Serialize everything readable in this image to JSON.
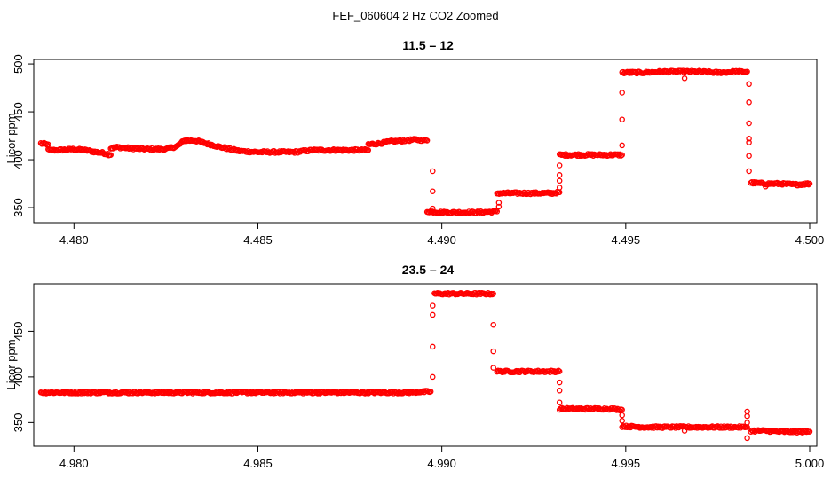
{
  "figure": {
    "title": "FEF_060604  2 Hz CO2 Zoomed"
  },
  "chart_data": [
    {
      "type": "scatter",
      "title": "11.5 – 12",
      "xlabel": "",
      "ylabel": "Licor ppm",
      "xlim": [
        4.4791,
        4.5
      ],
      "ylim": [
        338,
        501
      ],
      "xticks": [
        4.48,
        4.485,
        4.49,
        4.495,
        4.5
      ],
      "xtick_labels": [
        "4.480",
        "4.485",
        "4.490",
        "4.495",
        "4.500"
      ],
      "yticks": [
        350,
        400,
        450,
        500
      ],
      "ytick_labels": [
        "350",
        "400",
        "450",
        "500"
      ],
      "marker_color": "#ff0000",
      "marker": "open-circle",
      "grid": false,
      "series": [
        {
          "segments": [
            {
              "x": [
                4.4791,
                4.4793
              ],
              "y": [
                417,
                416
              ]
            },
            {
              "x": [
                4.4793,
                4.4796,
                4.48,
                4.4803,
                4.4806,
                4.4808,
                4.481
              ],
              "y": [
                410,
                410,
                411,
                410,
                408,
                407,
                405
              ]
            },
            {
              "x": [
                4.481,
                4.4812,
                4.4815,
                4.482,
                4.4825,
                4.4828,
                4.483
              ],
              "y": [
                412,
                413,
                412,
                411,
                411,
                414,
                420
              ]
            },
            {
              "x": [
                4.483,
                4.4833,
                4.4836,
                4.484,
                4.4845,
                4.485,
                4.4855,
                4.486,
                4.4865,
                4.487,
                4.4875,
                4.488
              ],
              "y": [
                420,
                420,
                417,
                413,
                409,
                408,
                408,
                408,
                410,
                410,
                410,
                410
              ]
            },
            {
              "x": [
                4.488,
                4.4883,
                4.4886,
                4.489,
                4.4893,
                4.4896
              ],
              "y": [
                416,
                417,
                419,
                420,
                421,
                420
              ]
            },
            {
              "x": [
                4.4896,
                4.49,
                4.4905,
                4.491,
                4.4915
              ],
              "y": [
                346,
                345,
                345,
                345,
                346
              ]
            },
            {
              "x": [
                4.4915,
                4.492,
                4.4925,
                4.493,
                4.4932
              ],
              "y": [
                365,
                365,
                365,
                365,
                366
              ]
            },
            {
              "x": [
                4.4932,
                4.4936,
                4.494,
                4.4945,
                4.4949
              ],
              "y": [
                405,
                405,
                405,
                405,
                405
              ]
            },
            {
              "x": [
                4.4949,
                4.4955,
                4.496,
                4.4965,
                4.497,
                4.4975,
                4.498,
                4.4983
              ],
              "y": [
                491,
                491,
                492,
                492,
                492,
                491,
                492,
                492
              ]
            },
            {
              "x": [
                4.4984,
                4.4988,
                4.4992,
                4.4996,
                4.5
              ],
              "y": [
                376,
                375,
                375,
                374,
                375
              ]
            }
          ],
          "transitions": [
            {
              "x": 4.48975,
              "y": [
                388,
                367,
                349
              ]
            },
            {
              "x": 4.49155,
              "y": [
                355,
                351
              ]
            },
            {
              "x": 4.4932,
              "y": [
                394,
                384,
                378,
                371
              ]
            },
            {
              "x": 4.4949,
              "y": [
                470,
                442,
                415
              ]
            },
            {
              "x": 4.4966,
              "y": [
                485
              ]
            },
            {
              "x": 4.49835,
              "y": [
                479,
                460,
                438,
                422,
                418,
                404,
                388
              ]
            },
            {
              "x": 4.4988,
              "y": [
                372
              ]
            }
          ]
        }
      ]
    },
    {
      "type": "scatter",
      "title": "23.5 – 24",
      "xlabel": "",
      "ylabel": "Licor ppm",
      "xlim": [
        4.9791,
        5.0
      ],
      "ylim": [
        328,
        498
      ],
      "xticks": [
        4.98,
        4.985,
        4.99,
        4.995,
        5.0
      ],
      "xtick_labels": [
        "4.980",
        "4.985",
        "4.990",
        "4.995",
        "5.000"
      ],
      "yticks": [
        350,
        400,
        450
      ],
      "ytick_labels": [
        "350",
        "400",
        "450"
      ],
      "marker_color": "#ff0000",
      "marker": "open-circle",
      "grid": false,
      "series": [
        {
          "segments": [
            {
              "x": [
                4.9791,
                4.98,
                4.981,
                4.982,
                4.983,
                4.984,
                4.985,
                4.986,
                4.987,
                4.988,
                4.989,
                4.9897
              ],
              "y": [
                383,
                383,
                383,
                383,
                383,
                383,
                383,
                383,
                383,
                383,
                383,
                384
              ]
            },
            {
              "x": [
                4.9898,
                4.9902,
                4.9906,
                4.991,
                4.9914
              ],
              "y": [
                491,
                491,
                491,
                491,
                491
              ]
            },
            {
              "x": [
                4.9915,
                4.992,
                4.9925,
                4.993,
                4.9932
              ],
              "y": [
                406,
                406,
                406,
                406,
                406
              ]
            },
            {
              "x": [
                4.9932,
                4.9937,
                4.9941,
                4.9946,
                4.9949
              ],
              "y": [
                365,
                365,
                365,
                365,
                364
              ]
            },
            {
              "x": [
                4.9949,
                4.9955,
                4.996,
                4.9965,
                4.997,
                4.9975,
                4.998,
                4.9983
              ],
              "y": [
                346,
                345,
                345,
                345,
                345,
                345,
                345,
                345
              ]
            },
            {
              "x": [
                4.9984,
                4.9988,
                4.9992,
                4.9996,
                5.0
              ],
              "y": [
                341,
                341,
                340,
                340,
                340
              ]
            }
          ],
          "transitions": [
            {
              "x": 4.98975,
              "y": [
                400,
                433,
                468,
                478
              ]
            },
            {
              "x": 4.9914,
              "y": [
                457,
                428,
                410
              ]
            },
            {
              "x": 4.9932,
              "y": [
                394,
                385,
                372
              ]
            },
            {
              "x": 4.9949,
              "y": [
                358,
                352
              ]
            },
            {
              "x": 4.9966,
              "y": [
                341
              ]
            },
            {
              "x": 4.9983,
              "y": [
                362,
                357,
                350,
                333
              ]
            }
          ]
        }
      ]
    }
  ]
}
